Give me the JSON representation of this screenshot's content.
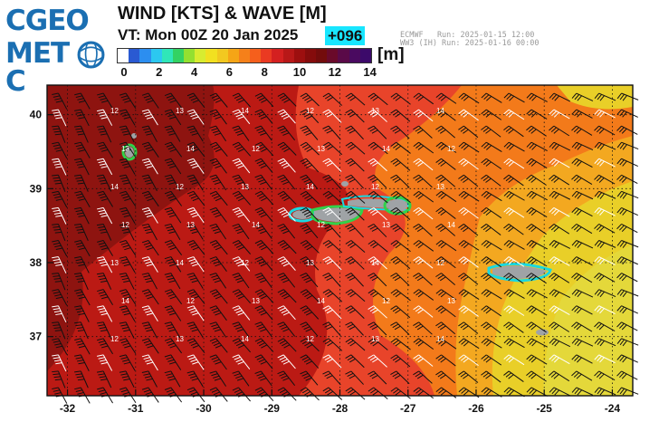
{
  "logo": {
    "line1": "CGEO",
    "line2": "MET",
    "line2_end": "C",
    "brand_color": "#1b6fb2"
  },
  "title": "WIND [KTS] & WAVE [M]",
  "valid_time": "VT: Mon 00Z 20 Jan 2025",
  "lead_time": "+096",
  "run_info": [
    "ECMWF   Run: 2025-01-15 12:00",
    "WW3 (IH) Run: 2025-01-16 00:00"
  ],
  "colorbar": {
    "unit": "[m]",
    "min": 0,
    "max": 14,
    "labels": [
      "0",
      "2",
      "4",
      "6",
      "8",
      "10",
      "12",
      "14"
    ],
    "colors": [
      "#ffffff",
      "#2a5ad2",
      "#2c8ef0",
      "#2cc8f0",
      "#30e6b8",
      "#33d263",
      "#93e030",
      "#d8ec30",
      "#f2e020",
      "#f2c820",
      "#f5a516",
      "#f5801a",
      "#f55f1c",
      "#ea3a22",
      "#d42020",
      "#b81818",
      "#9d0f0f",
      "#850c0c",
      "#730c0c",
      "#6a0a2a",
      "#5a0a48",
      "#4a0a60",
      "#3c0a6a"
    ]
  },
  "axes": {
    "lon_labels": [
      "-32",
      "-31",
      "-30",
      "-29",
      "-28",
      "-27",
      "-26",
      "-25",
      "-24"
    ],
    "lat_labels": [
      "40",
      "39",
      "38",
      "37"
    ],
    "lon_range": [
      -32.3,
      -23.7
    ],
    "lat_range": [
      36.2,
      40.4
    ]
  },
  "wind_labels": [
    "12",
    "13",
    "14"
  ],
  "wave_colors": {
    "dark_red": "#8e1410",
    "red": "#bb1a14",
    "red_orange": "#e8442a",
    "orange": "#f37a1a",
    "light_orange": "#f3a820",
    "yellow": "#e9cf28",
    "light_yellow": "#e4d83a",
    "island": "#9fa3a6",
    "coast_green": "#31d14a",
    "coast_cyan": "#1ad8e0"
  }
}
